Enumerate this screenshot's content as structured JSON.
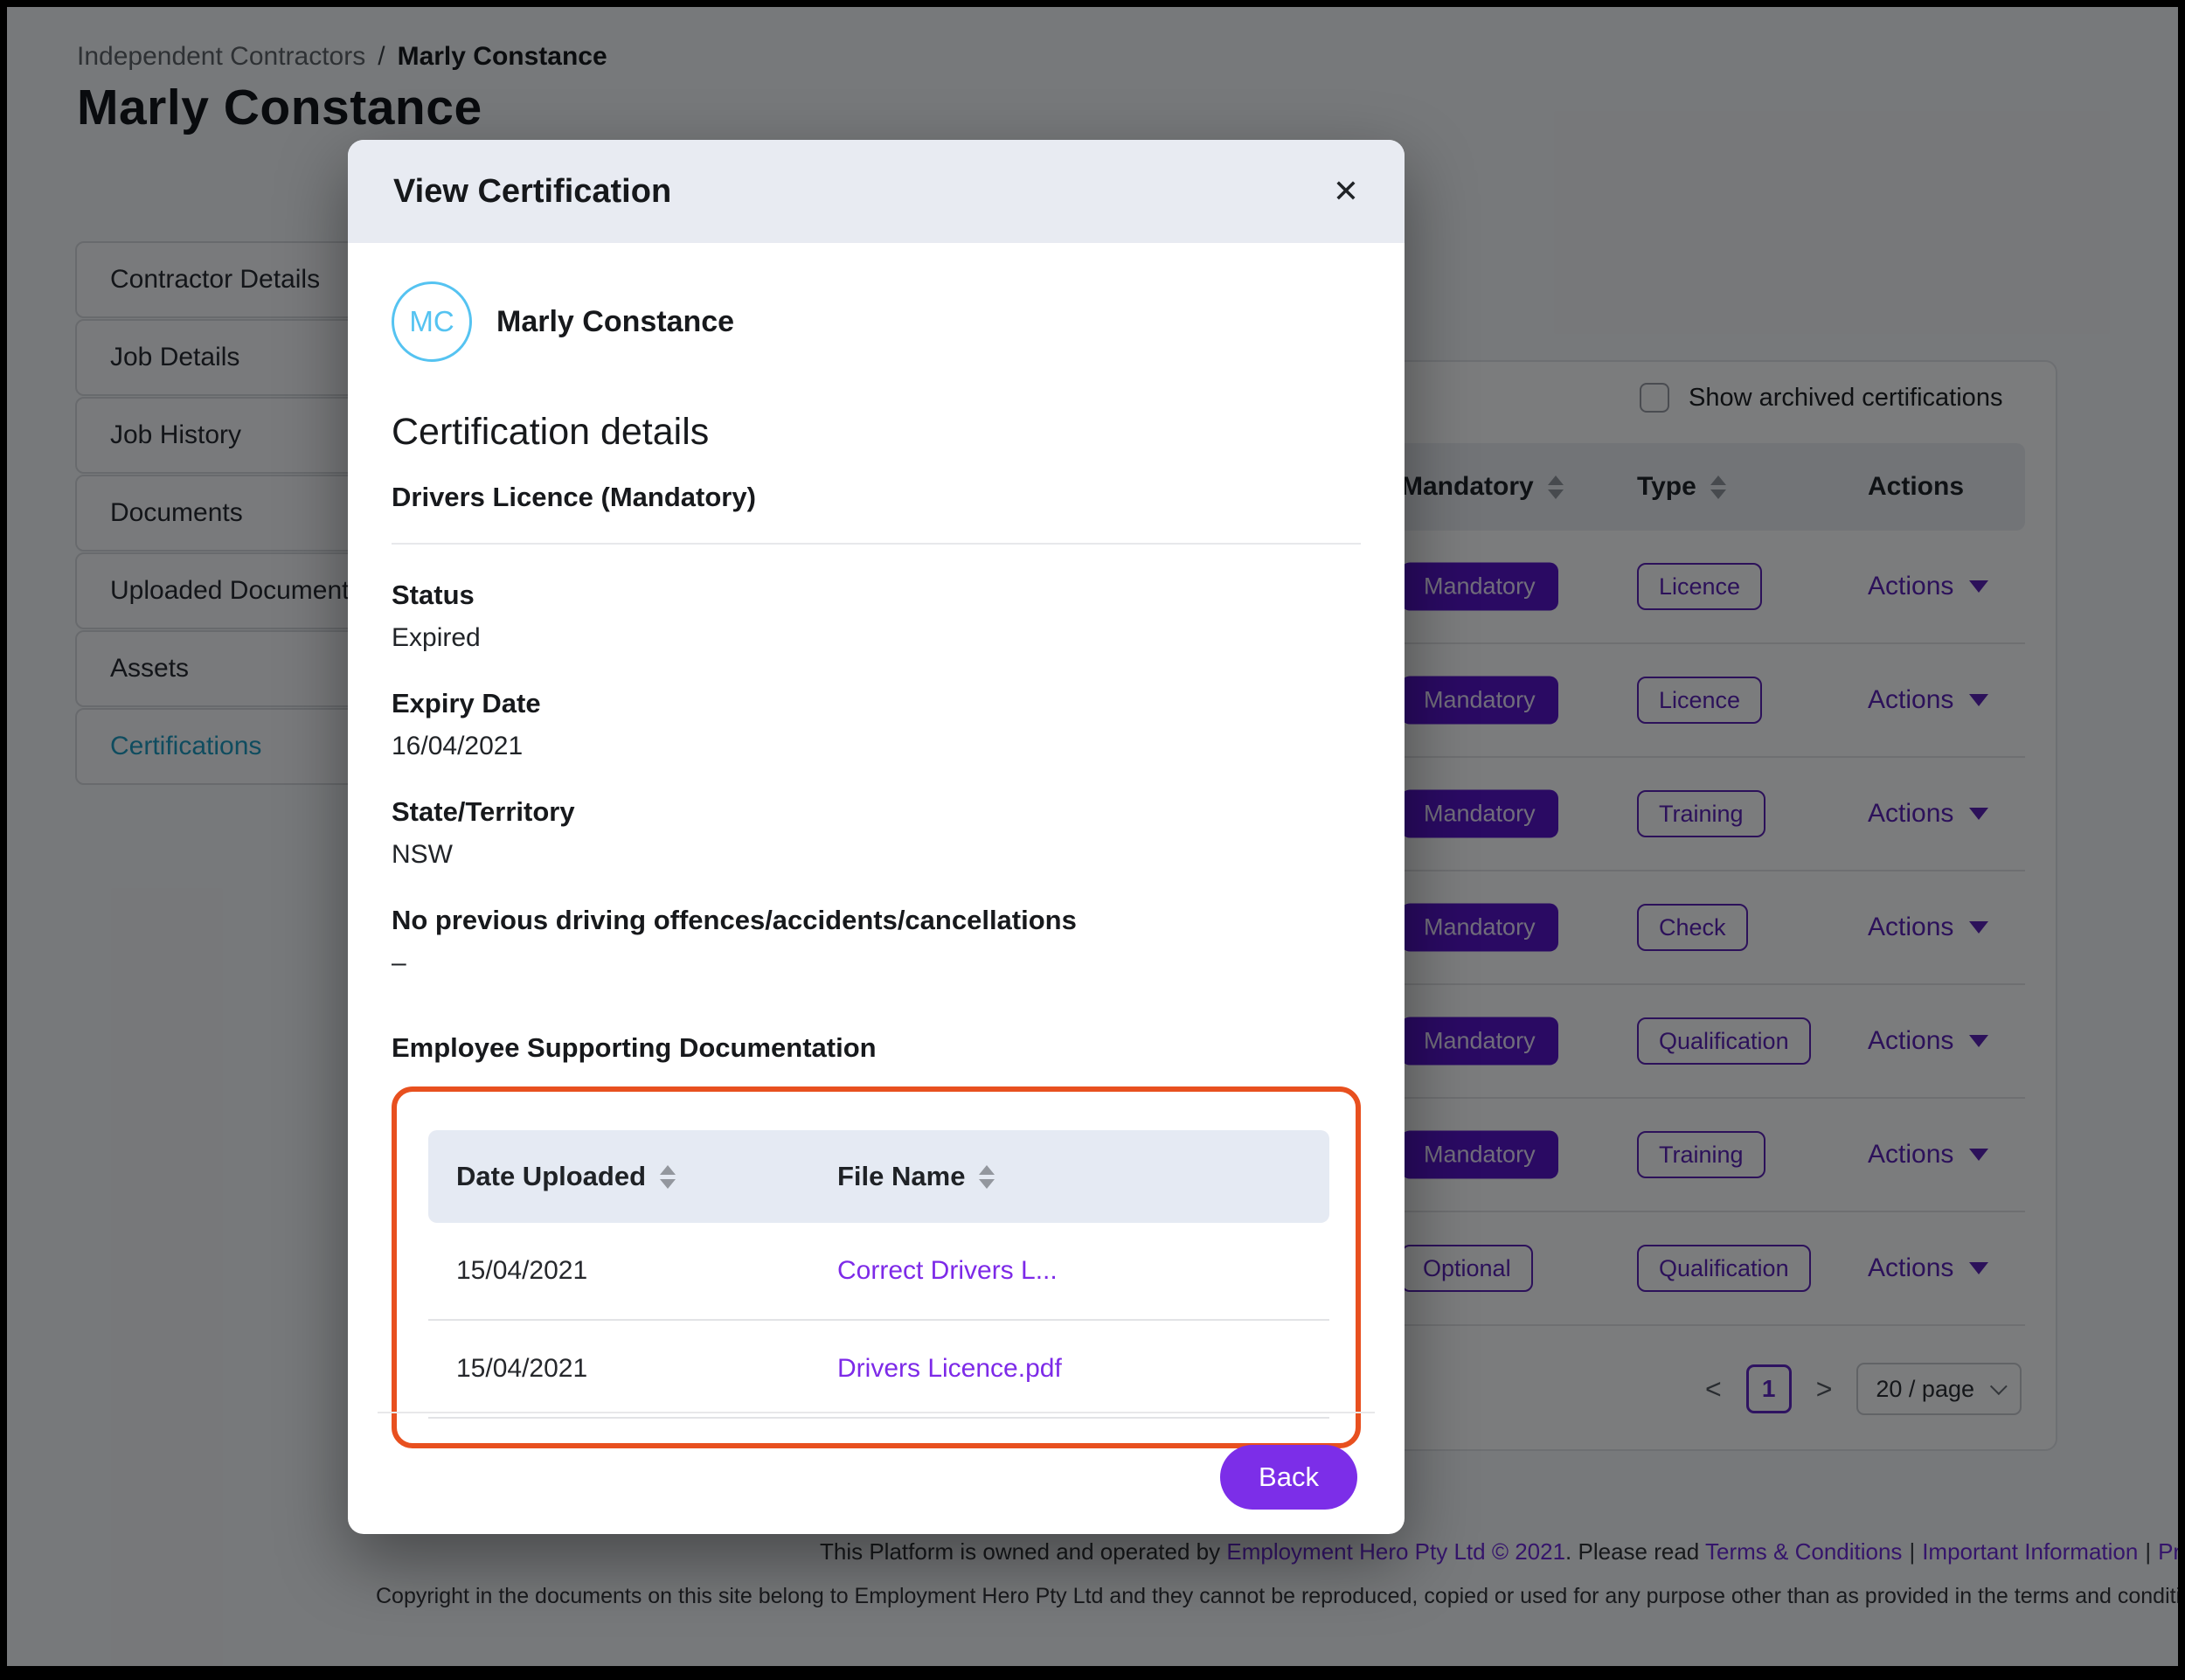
{
  "page": {
    "breadcrumb": {
      "parent": "Independent Contractors",
      "separator": "/",
      "current": "Marly Constance"
    },
    "title": "Marly Constance",
    "sidebar": {
      "items": [
        {
          "label": "Contractor Details",
          "active": false
        },
        {
          "label": "Job Details",
          "active": false
        },
        {
          "label": "Job History",
          "active": false
        },
        {
          "label": "Documents",
          "active": false
        },
        {
          "label": "Uploaded Documents",
          "active": false
        },
        {
          "label": "Assets",
          "active": false
        },
        {
          "label": "Certifications",
          "active": true
        }
      ]
    },
    "certifications_panel": {
      "show_archived_label": "Show archived certifications",
      "columns": {
        "mandatory": "Mandatory",
        "type": "Type",
        "actions": "Actions"
      },
      "rows": [
        {
          "mandatory": "Mandatory",
          "mandatory_style": "filled",
          "type": "Licence",
          "actions_label": "Actions"
        },
        {
          "mandatory": "Mandatory",
          "mandatory_style": "filled",
          "type": "Licence",
          "actions_label": "Actions"
        },
        {
          "mandatory": "Mandatory",
          "mandatory_style": "filled",
          "type": "Training",
          "actions_label": "Actions"
        },
        {
          "mandatory": "Mandatory",
          "mandatory_style": "filled",
          "type": "Check",
          "actions_label": "Actions"
        },
        {
          "mandatory": "Mandatory",
          "mandatory_style": "filled",
          "type": "Qualification",
          "actions_label": "Actions"
        },
        {
          "mandatory": "Mandatory",
          "mandatory_style": "filled",
          "type": "Training",
          "actions_label": "Actions"
        },
        {
          "mandatory": "Optional",
          "mandatory_style": "outline",
          "type": "Qualification",
          "actions_label": "Actions"
        }
      ],
      "pagination": {
        "prev": "<",
        "page": "1",
        "next": ">",
        "page_size": "20 / page"
      }
    },
    "footer": {
      "line1_prefix": "This Platform is owned and operated by ",
      "line1_link_company": "Employment Hero Pty Ltd © 2021",
      "line1_mid": ". Please read ",
      "link_terms": "Terms & Conditions",
      "separator": "|",
      "link_important": "Important Information",
      "link_privacy": "Privacy Policy",
      "line2": "Copyright in the documents on this site belong to Employment Hero Pty Ltd and they cannot be reproduced, copied or used for any purpose other than as provided in the terms and conditions on this site."
    }
  },
  "modal": {
    "title": "View Certification",
    "close_glyph": "✕",
    "avatar_initials": "MC",
    "person_name": "Marly Constance",
    "section_title": "Certification details",
    "cert_name": "Drivers Licence (Mandatory)",
    "fields": [
      {
        "label": "Status",
        "value": "Expired"
      },
      {
        "label": "Expiry Date",
        "value": "16/04/2021"
      },
      {
        "label": "State/Territory",
        "value": "NSW"
      },
      {
        "label": "No previous driving offences/accidents/cancellations",
        "value": "–"
      }
    ],
    "docs": {
      "heading": "Employee Supporting Documentation",
      "columns": {
        "date": "Date Uploaded",
        "file": "File Name"
      },
      "rows": [
        {
          "date": "15/04/2021",
          "file": "Correct Drivers L..."
        },
        {
          "date": "15/04/2021",
          "file": "Drivers Licence.pdf"
        }
      ]
    },
    "back_label": "Back"
  },
  "colors": {
    "accent_purple": "#7c2ee8",
    "badge_purple": "#5712c9",
    "outline_purple": "#5b21b6",
    "highlight_orange": "#e8501f",
    "active_tab_teal": "#1f9cc0",
    "avatar_blue": "#55c3f1",
    "modal_header_bg": "#e8ebf2"
  }
}
